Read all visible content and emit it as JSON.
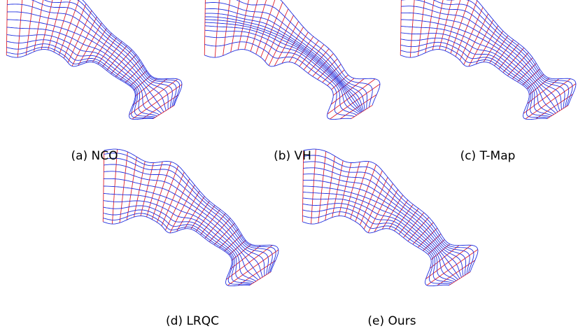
{
  "figure": {
    "panels": [
      {
        "caption": "(a) NCO"
      },
      {
        "caption": "(b) VH"
      },
      {
        "caption": "(c) T-Map"
      },
      {
        "caption": "(d) LRQC"
      },
      {
        "caption": "(e) Ours"
      }
    ]
  }
}
